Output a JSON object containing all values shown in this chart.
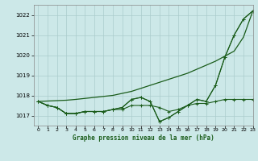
{
  "title": "Graphe pression niveau de la mer (hPa)",
  "background_color": "#cce8e8",
  "grid_color": "#aacccc",
  "line_color": "#1a5c1a",
  "xlim": [
    -0.5,
    23
  ],
  "ylim": [
    1016.5,
    1022.5
  ],
  "yticks": [
    1017,
    1018,
    1019,
    1020,
    1021,
    1022
  ],
  "xticks": [
    0,
    1,
    2,
    3,
    4,
    5,
    6,
    7,
    8,
    9,
    10,
    11,
    12,
    13,
    14,
    15,
    16,
    17,
    18,
    19,
    20,
    21,
    22,
    23
  ],
  "series_with_markers": [
    [
      1017.7,
      1017.5,
      1017.4,
      1017.1,
      1017.1,
      1017.2,
      1017.2,
      1017.2,
      1017.3,
      1017.4,
      1017.8,
      1017.9,
      1017.7,
      1016.7,
      1016.9,
      1017.2,
      1017.5,
      1017.8,
      1017.7,
      1018.5,
      1019.9,
      1021.0,
      1021.8,
      1022.2
    ],
    [
      1017.7,
      1017.5,
      1017.4,
      1017.1,
      1017.1,
      1017.2,
      1017.2,
      1017.2,
      1017.3,
      1017.4,
      1017.8,
      1017.9,
      1017.7,
      1016.7,
      1016.9,
      1017.2,
      1017.5,
      1017.8,
      1017.7,
      1018.5,
      1019.9,
      1021.0,
      1021.8,
      1022.2
    ],
    [
      1017.7,
      1017.5,
      1017.4,
      1017.1,
      1017.1,
      1017.2,
      1017.2,
      1017.2,
      1017.3,
      1017.3,
      1017.5,
      1017.5,
      1017.5,
      1017.4,
      1017.2,
      1017.3,
      1017.5,
      1017.6,
      1017.6,
      1017.7,
      1017.8,
      1017.8,
      1017.8,
      1017.8
    ]
  ],
  "series_no_markers": [
    [
      1017.7,
      1017.72,
      1017.74,
      1017.76,
      1017.8,
      1017.85,
      1017.9,
      1017.95,
      1018.0,
      1018.1,
      1018.2,
      1018.35,
      1018.5,
      1018.65,
      1018.8,
      1018.95,
      1019.1,
      1019.3,
      1019.5,
      1019.7,
      1019.95,
      1020.2,
      1020.9,
      1022.2
    ]
  ]
}
